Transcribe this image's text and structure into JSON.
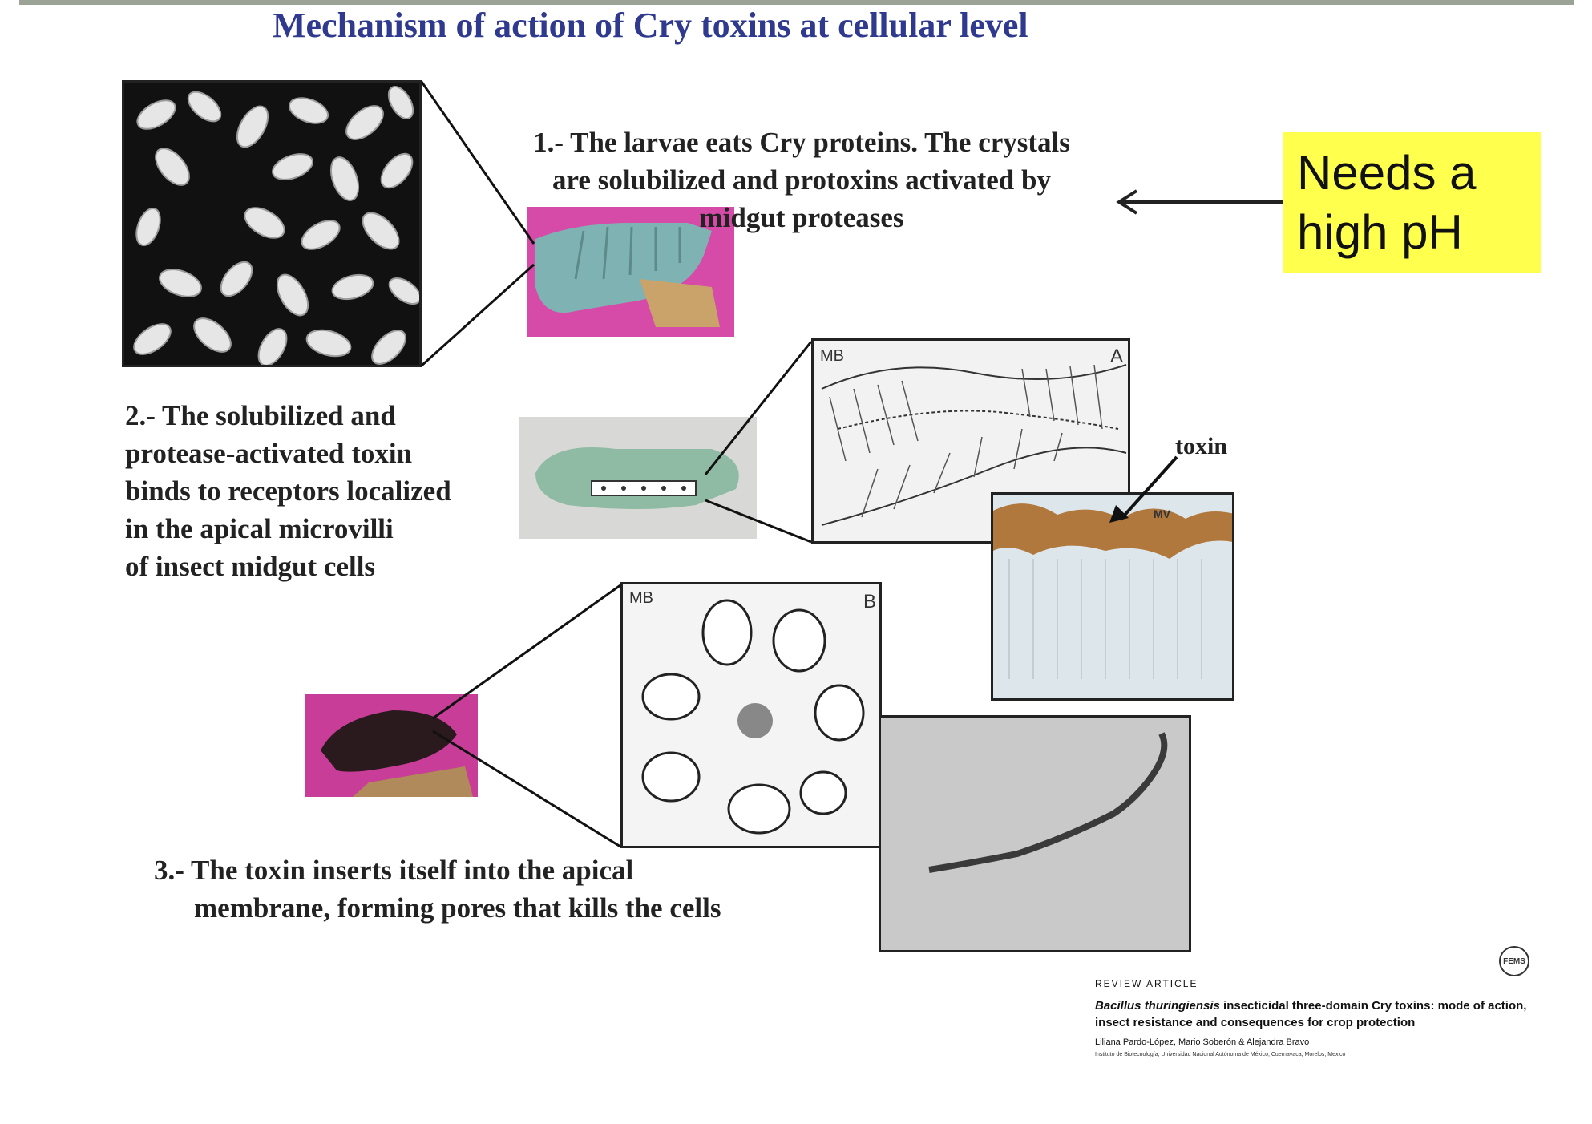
{
  "slide": {
    "title": "Mechanism of action of  Cry toxins at cellular level"
  },
  "steps": {
    "step1": "1.- The larvae eats Cry proteins. The crystals\nare solubilized and protoxins activated by\nmidgut proteases",
    "step2": "2.- The solubilized and\nprotease-activated toxin\nbinds to receptors localized\nin the apical microvilli\nof insect midgut cells",
    "step3_line1": "3.- The toxin inserts itself into the apical",
    "step3_line2": "membrane, forming pores that kills the cells"
  },
  "callout": {
    "text": "Needs a\nhigh pH",
    "color": "#ffff4d"
  },
  "labels": {
    "toxin": "toxin",
    "panel_a_mb": "MB",
    "panel_a_letter": "A",
    "panel_mv": "MV",
    "panel_b_mb": "MB",
    "panel_b_letter": "B"
  },
  "reference": {
    "kind": "REVIEW ARTICLE",
    "title_italic": "Bacillus thuringiensis",
    "title_rest": " insecticidal three-domain Cry toxins: mode of action, insect resistance and consequences for crop protection",
    "authors": "Liliana Pardo-López, Mario Soberón & Alejandra Bravo",
    "institution": "Instituto de Biotecnología, Universidad Nacional Autónoma de México, Cuernavaca, Morelos, Mexico",
    "logo_text": "FEMS"
  },
  "colors": {
    "title": "#2f3a8f",
    "accent_bar": "#9aa395"
  }
}
